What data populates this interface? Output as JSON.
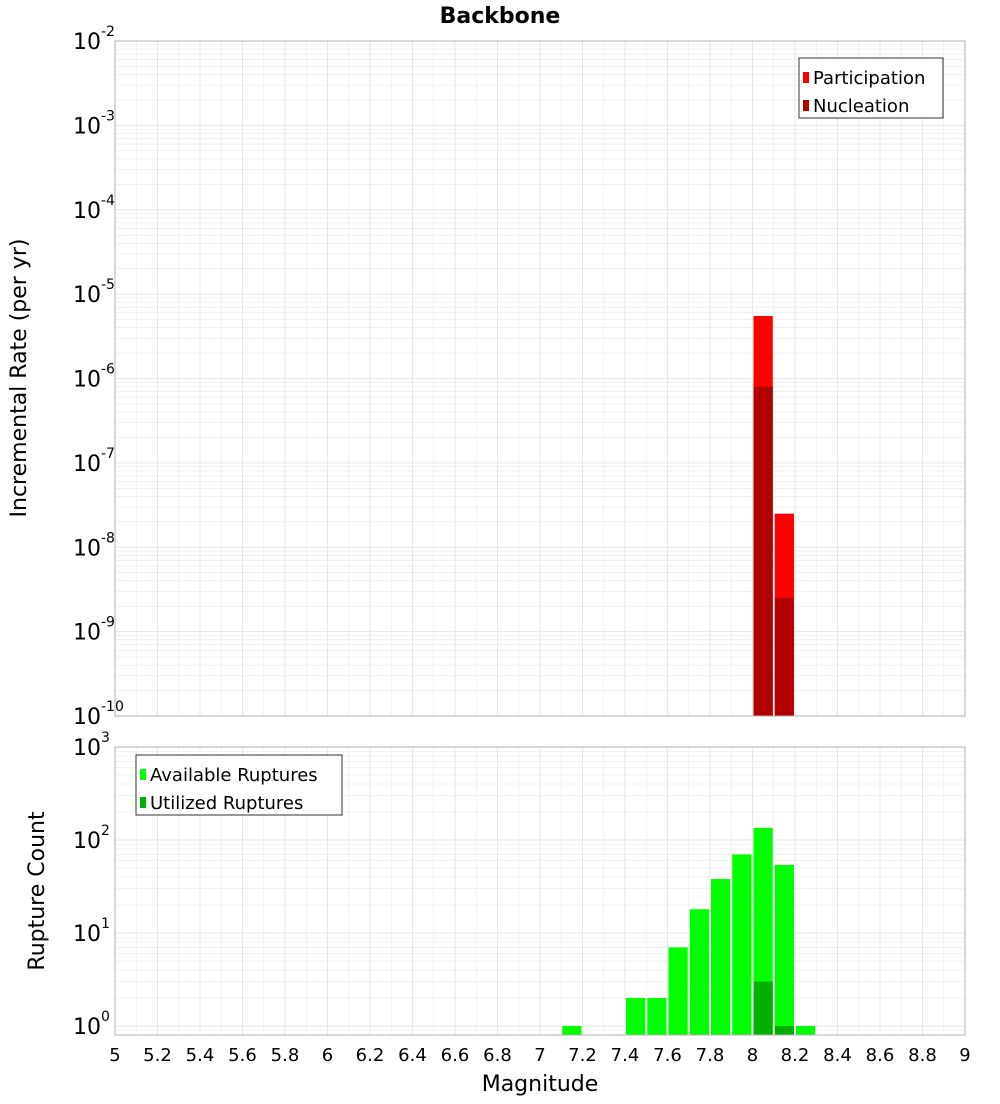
{
  "title": "Backbone",
  "colors": {
    "participation": "#ff0000",
    "nucleation": "#b00000",
    "available": "#00ff00",
    "utilized": "#00b000",
    "grid": "#e6e6e6",
    "frame": "#b0b0b0"
  },
  "chart_data": [
    {
      "type": "bar",
      "scale": "log",
      "ylabel": "Incremental Rate (per yr)",
      "ylim": [
        1e-10,
        0.01
      ],
      "y_ticks": [
        {
          "base": "10",
          "exp": "-10"
        },
        {
          "base": "10",
          "exp": "-9"
        },
        {
          "base": "10",
          "exp": "-8"
        },
        {
          "base": "10",
          "exp": "-7"
        },
        {
          "base": "10",
          "exp": "-6"
        },
        {
          "base": "10",
          "exp": "-5"
        },
        {
          "base": "10",
          "exp": "-4"
        },
        {
          "base": "10",
          "exp": "-3"
        },
        {
          "base": "10",
          "exp": "-2"
        }
      ],
      "bin_width": 0.1,
      "legend": {
        "position": "top-right"
      },
      "series": [
        {
          "name": "Participation",
          "color_key": "participation",
          "points": [
            {
              "x": 8.05,
              "y": 5.5e-06
            },
            {
              "x": 8.15,
              "y": 2.5e-08
            }
          ]
        },
        {
          "name": "Nucleation",
          "color_key": "nucleation",
          "points": [
            {
              "x": 8.05,
              "y": 8e-07
            },
            {
              "x": 8.15,
              "y": 2.5e-09
            }
          ]
        }
      ]
    },
    {
      "type": "bar",
      "scale": "log",
      "xlabel": "Magnitude",
      "ylabel": "Rupture Count",
      "ylim": [
        0.8,
        1000
      ],
      "xlim": [
        5,
        9
      ],
      "y_ticks": [
        {
          "value": 1,
          "base": "10",
          "exp": "0"
        },
        {
          "value": 10,
          "base": "10",
          "exp": "1"
        },
        {
          "value": 100,
          "base": "10",
          "exp": "2"
        },
        {
          "value": 1000,
          "base": "10",
          "exp": "3"
        }
      ],
      "x_ticks": [
        "5",
        "5.2",
        "5.4",
        "5.6",
        "5.8",
        "6",
        "6.2",
        "6.4",
        "6.6",
        "6.8",
        "7",
        "7.2",
        "7.4",
        "7.6",
        "7.8",
        "8",
        "8.2",
        "8.4",
        "8.6",
        "8.8",
        "9"
      ],
      "bin_width": 0.1,
      "legend": {
        "position": "top-left"
      },
      "series": [
        {
          "name": "Available Ruptures",
          "color_key": "available",
          "points": [
            {
              "x": 7.15,
              "y": 1
            },
            {
              "x": 7.45,
              "y": 2
            },
            {
              "x": 7.55,
              "y": 2
            },
            {
              "x": 7.65,
              "y": 7
            },
            {
              "x": 7.75,
              "y": 18
            },
            {
              "x": 7.85,
              "y": 38
            },
            {
              "x": 7.95,
              "y": 70
            },
            {
              "x": 8.05,
              "y": 135
            },
            {
              "x": 8.15,
              "y": 54
            },
            {
              "x": 8.25,
              "y": 1
            }
          ]
        },
        {
          "name": "Utilized Ruptures",
          "color_key": "utilized",
          "points": [
            {
              "x": 8.05,
              "y": 3
            },
            {
              "x": 8.15,
              "y": 1
            }
          ]
        }
      ]
    }
  ]
}
